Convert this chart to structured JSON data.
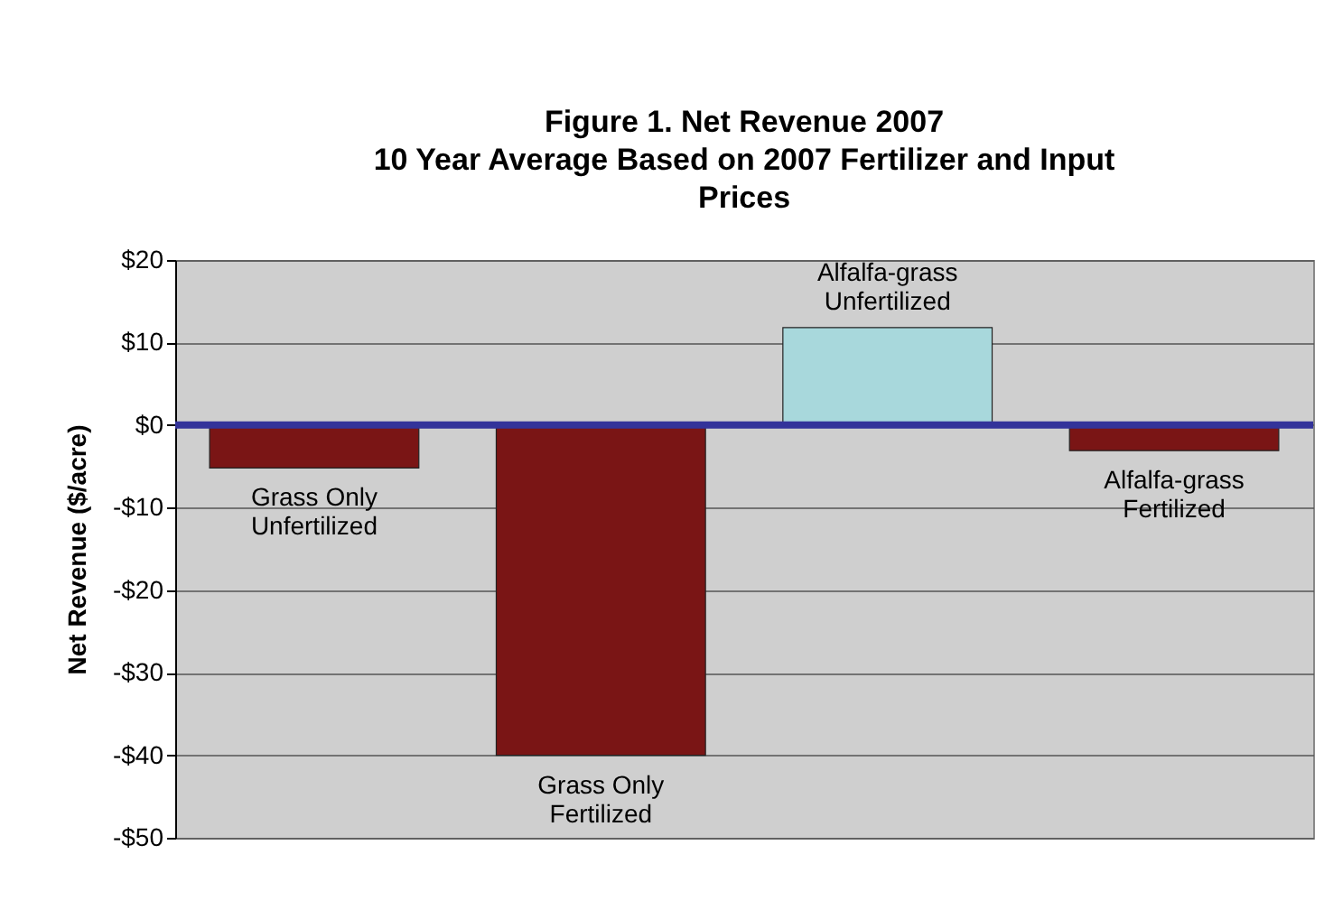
{
  "chart_data": {
    "type": "bar",
    "title": "Figure 1.  Net Revenue 2007\n10 Year Average Based on 2007 Fertilizer and Input\nPrices",
    "ylabel": "Net Revenue ($/acre)",
    "categories": [
      "Grass Only\nUnfertilized",
      "Grass Only\nFertilized",
      "Alfalfa-grass\nUnfertilized",
      "Alfalfa-grass\nFertilized"
    ],
    "values": [
      -5.2,
      -40,
      11.8,
      -3.1
    ],
    "colors": [
      "#7a1515",
      "#7a1515",
      "#a8d8dc",
      "#7a1515"
    ],
    "ylim": [
      -50,
      20
    ],
    "yticks": [
      {
        "value": -50,
        "label": "-$50"
      },
      {
        "value": -40,
        "label": "-$40"
      },
      {
        "value": -30,
        "label": "-$30"
      },
      {
        "value": -20,
        "label": "-$20"
      },
      {
        "value": -10,
        "label": "-$10"
      },
      {
        "value": 0,
        "label": "$0"
      },
      {
        "value": 10,
        "label": "$10"
      },
      {
        "value": 20,
        "label": "$20"
      }
    ],
    "grid": "y",
    "tick_labels": "y",
    "ref_lines": [
      {
        "axis": "y",
        "value": 0,
        "color": "#33339a"
      }
    ]
  }
}
